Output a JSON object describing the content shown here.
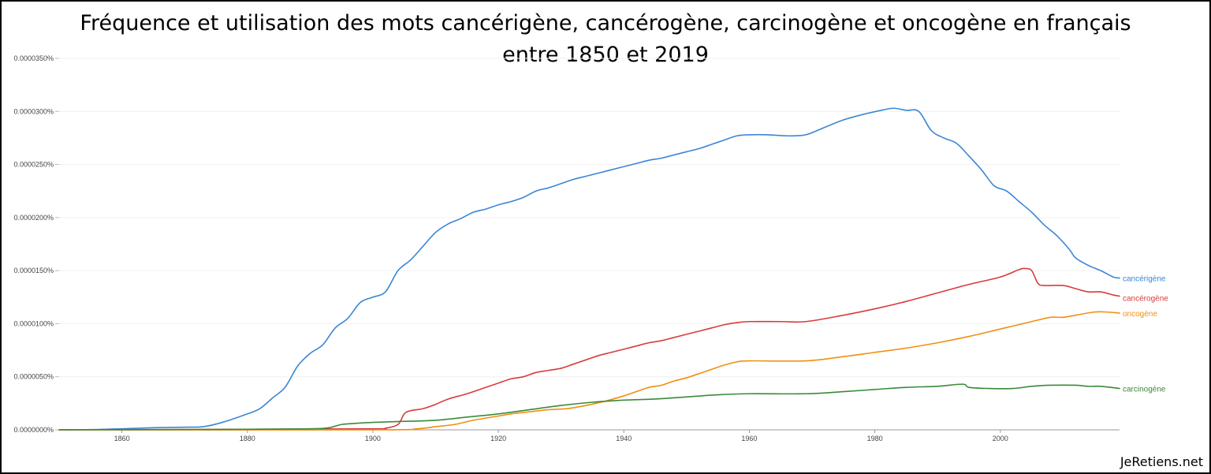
{
  "title_line1": "Fréquence et utilisation des mots cancérigène, cancérogène, carcinogène et oncogène en français",
  "title_line2": "entre 1850 et 2019",
  "watermark": "JeRetiens.net",
  "chart_data": {
    "type": "line",
    "xlim": [
      1850,
      2019
    ],
    "ylim": [
      0,
      3.5e-05
    ],
    "x_ticks": [
      1860,
      1880,
      1900,
      1920,
      1940,
      1960,
      1980,
      2000
    ],
    "x_tick_labels": [
      "1860",
      "1880",
      "1900",
      "1920",
      "1940",
      "1960",
      "1980",
      "2000"
    ],
    "y_ticks": [
      0,
      5e-06,
      1e-05,
      1.5e-05,
      2e-05,
      2.5e-05,
      3e-05,
      3.5e-05
    ],
    "y_tick_labels": [
      "0.0000000%",
      "0.0000050%",
      "0.0000100%",
      "0.0000150%",
      "0.0000200%",
      "0.0000250%",
      "0.0000300%",
      "0.0000350%"
    ],
    "grid": true,
    "series": [
      {
        "name": "cancérigène",
        "color": "#3b86d6",
        "points": [
          [
            1850,
            0
          ],
          [
            1855,
            2e-08
          ],
          [
            1860,
            1e-07
          ],
          [
            1865,
            2e-07
          ],
          [
            1870,
            2.5e-07
          ],
          [
            1873,
            3e-07
          ],
          [
            1876,
            7e-07
          ],
          [
            1880,
            1.5e-06
          ],
          [
            1882,
            2e-06
          ],
          [
            1884,
            3e-06
          ],
          [
            1886,
            4e-06
          ],
          [
            1888,
            6e-06
          ],
          [
            1890,
            7.2e-06
          ],
          [
            1892,
            8e-06
          ],
          [
            1894,
            9.6e-06
          ],
          [
            1896,
            1.05e-05
          ],
          [
            1898,
            1.2e-05
          ],
          [
            1900,
            1.25e-05
          ],
          [
            1902,
            1.3e-05
          ],
          [
            1904,
            1.5e-05
          ],
          [
            1906,
            1.6e-05
          ],
          [
            1908,
            1.73e-05
          ],
          [
            1910,
            1.86e-05
          ],
          [
            1912,
            1.94e-05
          ],
          [
            1914,
            1.99e-05
          ],
          [
            1916,
            2.05e-05
          ],
          [
            1918,
            2.08e-05
          ],
          [
            1920,
            2.12e-05
          ],
          [
            1922,
            2.15e-05
          ],
          [
            1924,
            2.19e-05
          ],
          [
            1926,
            2.25e-05
          ],
          [
            1928,
            2.28e-05
          ],
          [
            1930,
            2.32e-05
          ],
          [
            1932,
            2.36e-05
          ],
          [
            1934,
            2.39e-05
          ],
          [
            1936,
            2.42e-05
          ],
          [
            1938,
            2.45e-05
          ],
          [
            1940,
            2.48e-05
          ],
          [
            1942,
            2.51e-05
          ],
          [
            1944,
            2.54e-05
          ],
          [
            1946,
            2.56e-05
          ],
          [
            1948,
            2.59e-05
          ],
          [
            1950,
            2.62e-05
          ],
          [
            1952,
            2.65e-05
          ],
          [
            1954,
            2.69e-05
          ],
          [
            1956,
            2.73e-05
          ],
          [
            1958,
            2.77e-05
          ],
          [
            1960,
            2.78e-05
          ],
          [
            1963,
            2.78e-05
          ],
          [
            1966,
            2.77e-05
          ],
          [
            1969,
            2.78e-05
          ],
          [
            1972,
            2.85e-05
          ],
          [
            1975,
            2.92e-05
          ],
          [
            1978,
            2.97e-05
          ],
          [
            1981,
            3.01e-05
          ],
          [
            1983,
            3.03e-05
          ],
          [
            1985,
            3.01e-05
          ],
          [
            1987,
            3e-05
          ],
          [
            1989,
            2.82e-05
          ],
          [
            1991,
            2.75e-05
          ],
          [
            1993,
            2.7e-05
          ],
          [
            1995,
            2.58e-05
          ],
          [
            1997,
            2.45e-05
          ],
          [
            1999,
            2.3e-05
          ],
          [
            2001,
            2.25e-05
          ],
          [
            2003,
            2.15e-05
          ],
          [
            2005,
            2.05e-05
          ],
          [
            2007,
            1.93e-05
          ],
          [
            2009,
            1.83e-05
          ],
          [
            2011,
            1.7e-05
          ],
          [
            2012,
            1.62e-05
          ],
          [
            2014,
            1.55e-05
          ],
          [
            2016,
            1.5e-05
          ],
          [
            2018,
            1.44e-05
          ],
          [
            2019,
            1.43e-05
          ]
        ]
      },
      {
        "name": "cancérogène",
        "color": "#d83b3b",
        "points": [
          [
            1850,
            0
          ],
          [
            1880,
            5e-08
          ],
          [
            1900,
            1e-07
          ],
          [
            1902,
            1.5e-07
          ],
          [
            1904,
            5e-07
          ],
          [
            1905,
            1.5e-06
          ],
          [
            1906,
            1.8e-06
          ],
          [
            1908,
            2e-06
          ],
          [
            1910,
            2.4e-06
          ],
          [
            1912,
            2.9e-06
          ],
          [
            1915,
            3.4e-06
          ],
          [
            1918,
            4e-06
          ],
          [
            1920,
            4.4e-06
          ],
          [
            1922,
            4.8e-06
          ],
          [
            1924,
            5e-06
          ],
          [
            1926,
            5.4e-06
          ],
          [
            1928,
            5.6e-06
          ],
          [
            1930,
            5.8e-06
          ],
          [
            1932,
            6.2e-06
          ],
          [
            1934,
            6.6e-06
          ],
          [
            1936,
            7e-06
          ],
          [
            1938,
            7.3e-06
          ],
          [
            1940,
            7.6e-06
          ],
          [
            1942,
            7.9e-06
          ],
          [
            1944,
            8.2e-06
          ],
          [
            1946,
            8.4e-06
          ],
          [
            1948,
            8.7e-06
          ],
          [
            1950,
            9e-06
          ],
          [
            1952,
            9.3e-06
          ],
          [
            1954,
            9.6e-06
          ],
          [
            1956,
            9.9e-06
          ],
          [
            1958,
            1.01e-05
          ],
          [
            1960,
            1.02e-05
          ],
          [
            1965,
            1.02e-05
          ],
          [
            1969,
            1.02e-05
          ],
          [
            1975,
            1.08e-05
          ],
          [
            1980,
            1.14e-05
          ],
          [
            1985,
            1.21e-05
          ],
          [
            1990,
            1.29e-05
          ],
          [
            1995,
            1.37e-05
          ],
          [
            2000,
            1.44e-05
          ],
          [
            2003,
            1.51e-05
          ],
          [
            2004,
            1.52e-05
          ],
          [
            2005,
            1.5e-05
          ],
          [
            2006,
            1.38e-05
          ],
          [
            2007,
            1.36e-05
          ],
          [
            2010,
            1.36e-05
          ],
          [
            2012,
            1.33e-05
          ],
          [
            2014,
            1.3e-05
          ],
          [
            2016,
            1.3e-05
          ],
          [
            2018,
            1.27e-05
          ],
          [
            2019,
            1.26e-05
          ]
        ]
      },
      {
        "name": "oncogène",
        "color": "#f08f10",
        "points": [
          [
            1850,
            0
          ],
          [
            1900,
            0
          ],
          [
            1907,
            1e-07
          ],
          [
            1910,
            3e-07
          ],
          [
            1913,
            5e-07
          ],
          [
            1916,
            9e-07
          ],
          [
            1920,
            1.3e-06
          ],
          [
            1922,
            1.5e-06
          ],
          [
            1925,
            1.7e-06
          ],
          [
            1928,
            1.9e-06
          ],
          [
            1931,
            2e-06
          ],
          [
            1934,
            2.3e-06
          ],
          [
            1937,
            2.7e-06
          ],
          [
            1940,
            3.2e-06
          ],
          [
            1942,
            3.6e-06
          ],
          [
            1944,
            4e-06
          ],
          [
            1946,
            4.2e-06
          ],
          [
            1948,
            4.6e-06
          ],
          [
            1950,
            4.9e-06
          ],
          [
            1952,
            5.3e-06
          ],
          [
            1954,
            5.7e-06
          ],
          [
            1956,
            6.1e-06
          ],
          [
            1958,
            6.4e-06
          ],
          [
            1960,
            6.5e-06
          ],
          [
            1969,
            6.5e-06
          ],
          [
            1975,
            6.9e-06
          ],
          [
            1980,
            7.3e-06
          ],
          [
            1985,
            7.7e-06
          ],
          [
            1990,
            8.2e-06
          ],
          [
            1995,
            8.8e-06
          ],
          [
            2000,
            9.5e-06
          ],
          [
            2005,
            1.02e-05
          ],
          [
            2008,
            1.06e-05
          ],
          [
            2010,
            1.06e-05
          ],
          [
            2012,
            1.08e-05
          ],
          [
            2015,
            1.11e-05
          ],
          [
            2017,
            1.11e-05
          ],
          [
            2019,
            1.1e-05
          ]
        ]
      },
      {
        "name": "carcinogène",
        "color": "#3a8a3a",
        "points": [
          [
            1850,
            0
          ],
          [
            1880,
            5e-08
          ],
          [
            1890,
            1e-07
          ],
          [
            1893,
            2e-07
          ],
          [
            1895,
            5e-07
          ],
          [
            1897,
            6e-07
          ],
          [
            1900,
            7e-07
          ],
          [
            1905,
            8e-07
          ],
          [
            1910,
            9e-07
          ],
          [
            1915,
            1.2e-06
          ],
          [
            1920,
            1.5e-06
          ],
          [
            1925,
            1.9e-06
          ],
          [
            1930,
            2.3e-06
          ],
          [
            1935,
            2.6e-06
          ],
          [
            1940,
            2.8e-06
          ],
          [
            1945,
            2.9e-06
          ],
          [
            1950,
            3.1e-06
          ],
          [
            1955,
            3.3e-06
          ],
          [
            1960,
            3.4e-06
          ],
          [
            1969,
            3.4e-06
          ],
          [
            1975,
            3.6e-06
          ],
          [
            1980,
            3.8e-06
          ],
          [
            1985,
            4e-06
          ],
          [
            1990,
            4.1e-06
          ],
          [
            1994,
            4.3e-06
          ],
          [
            1995,
            4e-06
          ],
          [
            1998,
            3.9e-06
          ],
          [
            2002,
            3.9e-06
          ],
          [
            2005,
            4.1e-06
          ],
          [
            2008,
            4.2e-06
          ],
          [
            2012,
            4.2e-06
          ],
          [
            2014,
            4.1e-06
          ],
          [
            2016,
            4.1e-06
          ],
          [
            2019,
            3.9e-06
          ]
        ]
      }
    ]
  }
}
